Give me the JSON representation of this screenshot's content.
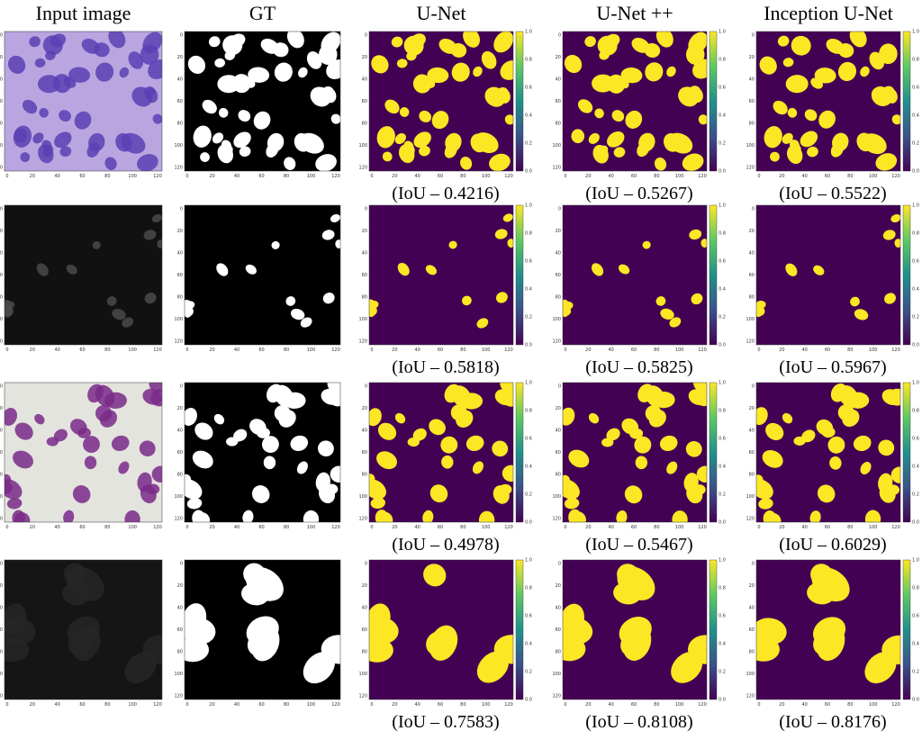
{
  "columns": [
    "Input image",
    "GT",
    "U-Net",
    "U-Net ++",
    "Inception U-Net"
  ],
  "axis_ticks": [
    0,
    20,
    40,
    60,
    80,
    100,
    120
  ],
  "colorbar_ticks": [
    "0.0",
    "0.2",
    "0.4",
    "0.6",
    "0.8",
    "1.0"
  ],
  "rows": [
    {
      "iou": [
        "(IoU – 0.4216)",
        "(IoU – 0.5267)",
        "(IoU – 0.5522)"
      ]
    },
    {
      "iou": [
        "(IoU – 0.5818)",
        "(IoU – 0.5825)",
        "(IoU – 0.5967)"
      ]
    },
    {
      "iou": [
        "(IoU – 0.4978)",
        "(IoU – 0.5467)",
        "(IoU – 0.6029)"
      ]
    },
    {
      "iou": [
        "(IoU – 0.7583)",
        "(IoU – 0.8108)",
        "(IoU – 0.8176)"
      ]
    }
  ]
}
